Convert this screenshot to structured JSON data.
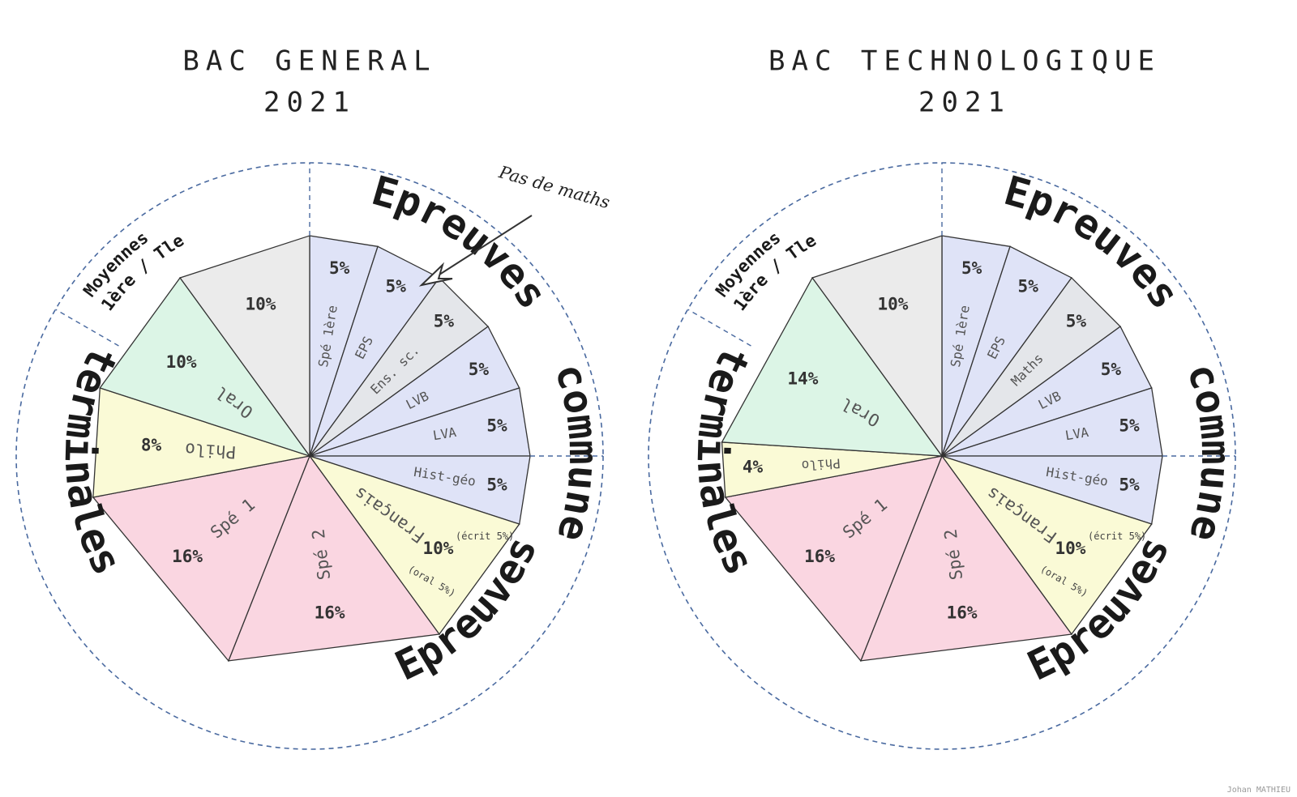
{
  "chart_data": [
    {
      "type": "pie",
      "title": [
        "BAC GENERAL",
        "2021"
      ],
      "ring_labels": {
        "top": "Epreuves",
        "right": "communes",
        "bottom": "Epreuves",
        "left": "terminales",
        "moyennes_line1": "Moyennes",
        "moyennes_line2": "1ère / Tle"
      },
      "slices": [
        {
          "label": "Spé 1ère",
          "value": 5,
          "display": "5%",
          "color": "#dfe3f7"
        },
        {
          "label": "EPS",
          "value": 5,
          "display": "5%",
          "color": "#dfe3f7"
        },
        {
          "label": "Ens. sc.",
          "value": 5,
          "display": "5%",
          "color": "#e4e6ea"
        },
        {
          "label": "LVB",
          "value": 5,
          "display": "5%",
          "color": "#dfe3f7"
        },
        {
          "label": "LVA",
          "value": 5,
          "display": "5%",
          "color": "#dfe3f7"
        },
        {
          "label": "Hist-géo",
          "value": 5,
          "display": "5%",
          "color": "#dfe3f7"
        },
        {
          "label": "Français",
          "value": 10,
          "display": "10%",
          "color": "#fafad6"
        },
        {
          "label": "Spé 2",
          "value": 16,
          "display": "16%",
          "color": "#fad6e1"
        },
        {
          "label": "Spé 1",
          "value": 16,
          "display": "16%",
          "color": "#fad6e1"
        },
        {
          "label": "Philo",
          "value": 8,
          "display": "8%",
          "color": "#fafad6"
        },
        {
          "label": "Oral",
          "value": 10,
          "display": "10%",
          "color": "#dcf5e6"
        },
        {
          "label": "",
          "value": 10,
          "display": "10%",
          "color": "#ebebeb"
        }
      ],
      "francais_notes": [
        "(écrit 5%)",
        "(oral 5%)"
      ],
      "annotation": "Pas de maths"
    },
    {
      "type": "pie",
      "title": [
        "BAC TECHNOLOGIQUE",
        "2021"
      ],
      "ring_labels": {
        "top": "Epreuves",
        "right": "communes",
        "bottom": "Epreuves",
        "left": "terminales",
        "moyennes_line1": "Moyennes",
        "moyennes_line2": "1ère / Tle"
      },
      "slices": [
        {
          "label": "Spé 1ère",
          "value": 5,
          "display": "5%",
          "color": "#dfe3f7"
        },
        {
          "label": "EPS",
          "value": 5,
          "display": "5%",
          "color": "#dfe3f7"
        },
        {
          "label": "Maths",
          "value": 5,
          "display": "5%",
          "color": "#e4e6ea"
        },
        {
          "label": "LVB",
          "value": 5,
          "display": "5%",
          "color": "#dfe3f7"
        },
        {
          "label": "LVA",
          "value": 5,
          "display": "5%",
          "color": "#dfe3f7"
        },
        {
          "label": "Hist-géo",
          "value": 5,
          "display": "5%",
          "color": "#dfe3f7"
        },
        {
          "label": "Français",
          "value": 10,
          "display": "10%",
          "color": "#fafad6"
        },
        {
          "label": "Spé 2",
          "value": 16,
          "display": "16%",
          "color": "#fad6e1"
        },
        {
          "label": "Spé 1",
          "value": 16,
          "display": "16%",
          "color": "#fad6e1"
        },
        {
          "label": "Philo",
          "value": 4,
          "display": "4%",
          "color": "#fafad6"
        },
        {
          "label": "Oral",
          "value": 14,
          "display": "14%",
          "color": "#dcf5e6"
        },
        {
          "label": "",
          "value": 10,
          "display": "10%",
          "color": "#ebebeb"
        }
      ],
      "francais_notes": [
        "(écrit 5%)",
        "(oral 5%)"
      ]
    }
  ],
  "author": "Johan MATHIEU",
  "colors": {
    "ring_dash": "#4a6aa0",
    "slice_stroke": "#333333"
  }
}
